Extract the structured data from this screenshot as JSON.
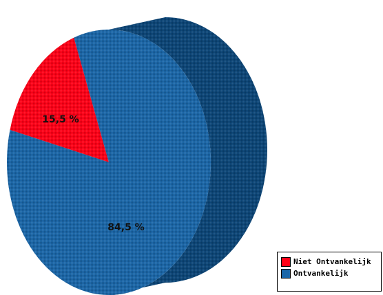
{
  "chart_data": {
    "type": "pie",
    "title": "",
    "labels": [
      "Niet Ontvankelijk",
      "Ontvankelijk"
    ],
    "values": [
      15.5,
      84.5
    ],
    "value_labels": [
      "15,5 %",
      "84,5 %"
    ],
    "colors": [
      "#ff0016",
      "#1a66a8"
    ],
    "side_color": "#0b4577",
    "three_d": true,
    "legend_position": "bottom-right"
  },
  "legend": {
    "items": [
      {
        "label": "Niet Ontvankelijk",
        "color": "#ff0016"
      },
      {
        "label": "Ontvankelijk",
        "color": "#1a66a8"
      }
    ]
  }
}
